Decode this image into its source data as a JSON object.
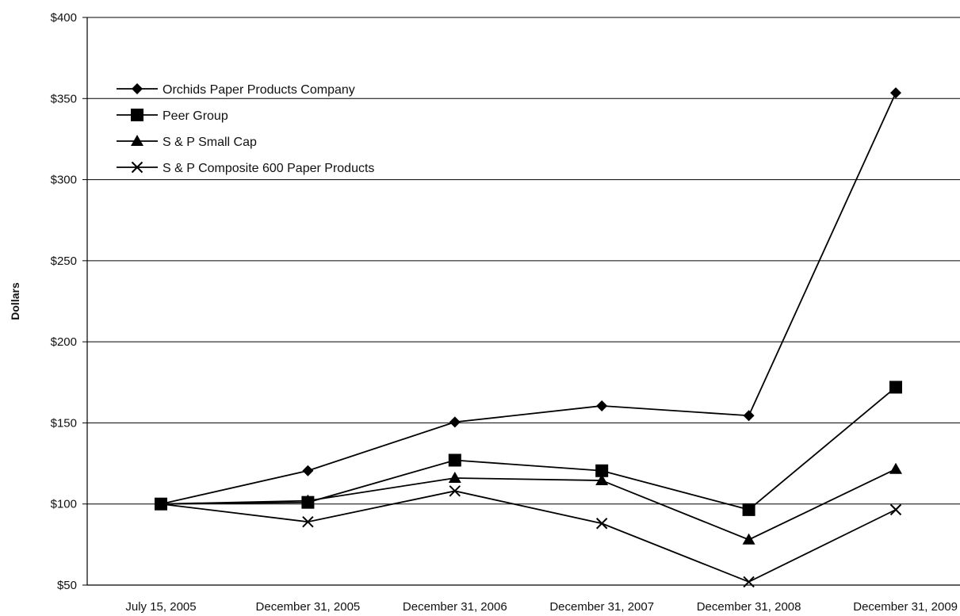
{
  "chart_data": {
    "type": "line",
    "title": "",
    "xlabel": "",
    "ylabel": "Dollars",
    "ylim": [
      50,
      400
    ],
    "yticks": [
      50,
      100,
      150,
      200,
      250,
      300,
      350,
      400
    ],
    "ytick_labels": [
      "$50",
      "$100",
      "$150",
      "$200",
      "$250",
      "$300",
      "$350",
      "$400"
    ],
    "categories": [
      "July 15, 2005",
      "December 31, 2005",
      "December 31, 2006",
      "December 31, 2007",
      "December 31, 2008",
      "December 31, 2009"
    ],
    "grid": "horizontal",
    "legend_position": "top-left",
    "series": [
      {
        "name": "Orchids Paper Products Company",
        "marker": "diamond",
        "values": [
          100,
          120.5,
          150.5,
          160.5,
          154.5,
          353.5
        ]
      },
      {
        "name": "Peer Group",
        "marker": "square",
        "values": [
          100,
          101,
          127,
          120.5,
          96.5,
          172
        ]
      },
      {
        "name": "S & P Small Cap",
        "marker": "triangle",
        "values": [
          100,
          102,
          116,
          114.5,
          78,
          121.5
        ]
      },
      {
        "name": "S & P Composite 600 Paper Products",
        "marker": "x",
        "values": [
          100,
          89,
          108,
          88,
          52,
          96.5
        ]
      }
    ],
    "line_color": "#000000"
  }
}
